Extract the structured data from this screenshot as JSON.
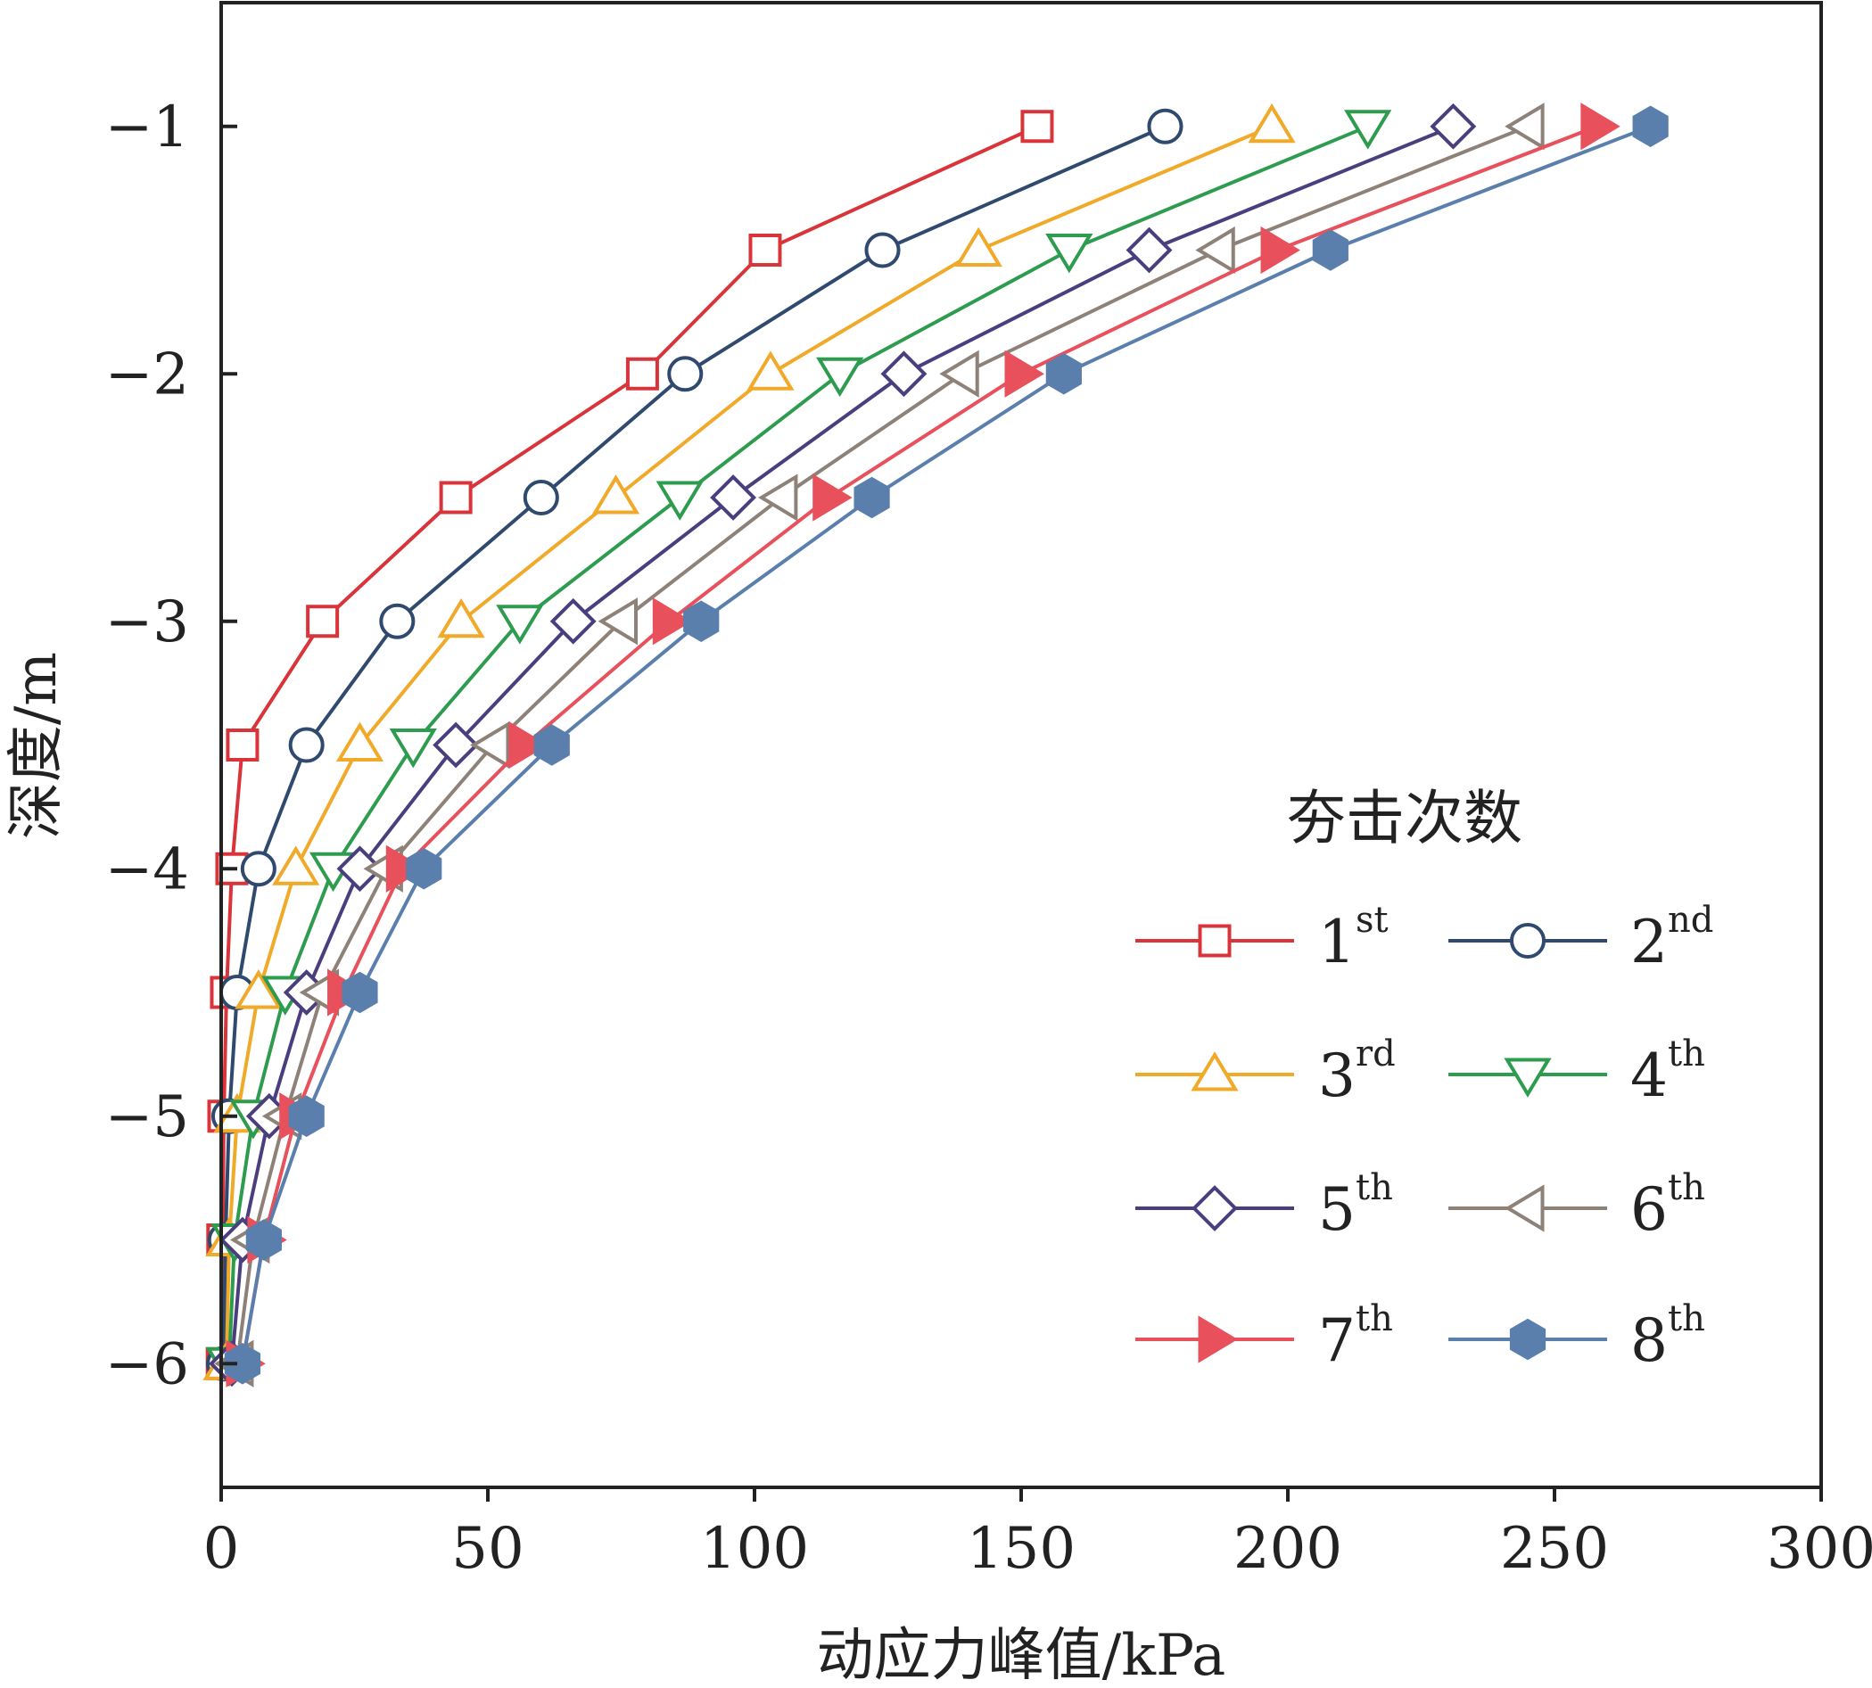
{
  "chart_data": {
    "type": "line",
    "title": "",
    "xlabel": "动应力峰值/kPa",
    "ylabel": "深度/m",
    "xlim": [
      0,
      300
    ],
    "ylim": [
      -6.5,
      -0.5
    ],
    "xticks": [
      0,
      50,
      100,
      150,
      200,
      250,
      300
    ],
    "yticks": [
      -1,
      -2,
      -3,
      -4,
      -5,
      -6
    ],
    "grid": false,
    "legend": {
      "title": "夯击次数",
      "placement": "lower-right",
      "columns": 2
    },
    "depths": [
      -1,
      -1.5,
      -2,
      -2.5,
      -3,
      -3.5,
      -4,
      -4.5,
      -5,
      -5.5,
      -6
    ],
    "series": [
      {
        "name": "1",
        "sup": "st",
        "color": "#d8343a",
        "marker": "square-open",
        "values": [
          153,
          102,
          79,
          44,
          19,
          4,
          2,
          1,
          0.5,
          0.3,
          0.2
        ]
      },
      {
        "name": "2",
        "sup": "nd",
        "color": "#2f4a6e",
        "marker": "circle-open",
        "values": [
          177,
          124,
          87,
          60,
          33,
          16,
          7,
          3,
          1.5,
          0.8,
          0.5
        ]
      },
      {
        "name": "3",
        "sup": "rd",
        "color": "#f0a928",
        "marker": "triangle-up-open",
        "values": [
          197,
          142,
          103,
          74,
          45,
          26,
          14,
          7,
          3,
          1.5,
          1
        ]
      },
      {
        "name": "4",
        "sup": "th",
        "color": "#2e9c4f",
        "marker": "triangle-down-open",
        "values": [
          215,
          159,
          116,
          86,
          56,
          36,
          21,
          12,
          6,
          2.5,
          1.5
        ]
      },
      {
        "name": "5",
        "sup": "th",
        "color": "#4a3e7e",
        "marker": "diamond-open",
        "values": [
          231,
          174,
          128,
          96,
          66,
          44,
          26,
          16,
          9,
          4,
          2
        ]
      },
      {
        "name": "6",
        "sup": "th",
        "color": "#8d8178",
        "marker": "triangle-left-open",
        "values": [
          245,
          187,
          139,
          105,
          75,
          51,
          31,
          19,
          12,
          6,
          3
        ]
      },
      {
        "name": "7",
        "sup": "th",
        "color": "#e8505b",
        "marker": "triangle-right-filled",
        "values": [
          258,
          198,
          150,
          114,
          84,
          57,
          34,
          23,
          14,
          8,
          4
        ]
      },
      {
        "name": "8",
        "sup": "th",
        "color": "#5b7fad",
        "marker": "hexagon-filled",
        "values": [
          268,
          208,
          158,
          122,
          90,
          62,
          38,
          26,
          16,
          8,
          4
        ]
      }
    ]
  }
}
